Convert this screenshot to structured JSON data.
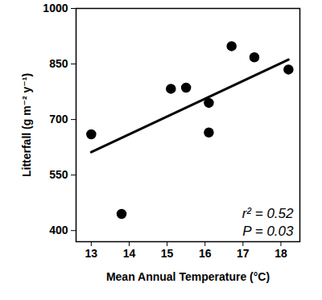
{
  "chart_data": {
    "type": "scatter",
    "x_label": "Mean Annual Temperature (°C)",
    "y_label": "Litterfall (g m⁻² y⁻¹)",
    "x": [
      13.0,
      13.8,
      15.1,
      15.5,
      16.1,
      16.1,
      16.7,
      17.3,
      18.2
    ],
    "values": [
      660,
      445,
      783,
      786,
      745,
      665,
      898,
      868,
      835
    ],
    "color": "#000000",
    "marker": "circle",
    "trend_line": {
      "x": [
        13.0,
        18.2
      ],
      "values": [
        612,
        862
      ],
      "line_style": "solid"
    },
    "annotations": [
      "r² = 0.52",
      "P = 0.03"
    ],
    "xlim": [
      12.6,
      18.5
    ],
    "xticks": [
      13,
      14,
      15,
      16,
      17,
      18
    ],
    "ylim": [
      370,
      1000
    ],
    "yticks": [
      400,
      550,
      700,
      850,
      1000
    ],
    "grid": false
  }
}
